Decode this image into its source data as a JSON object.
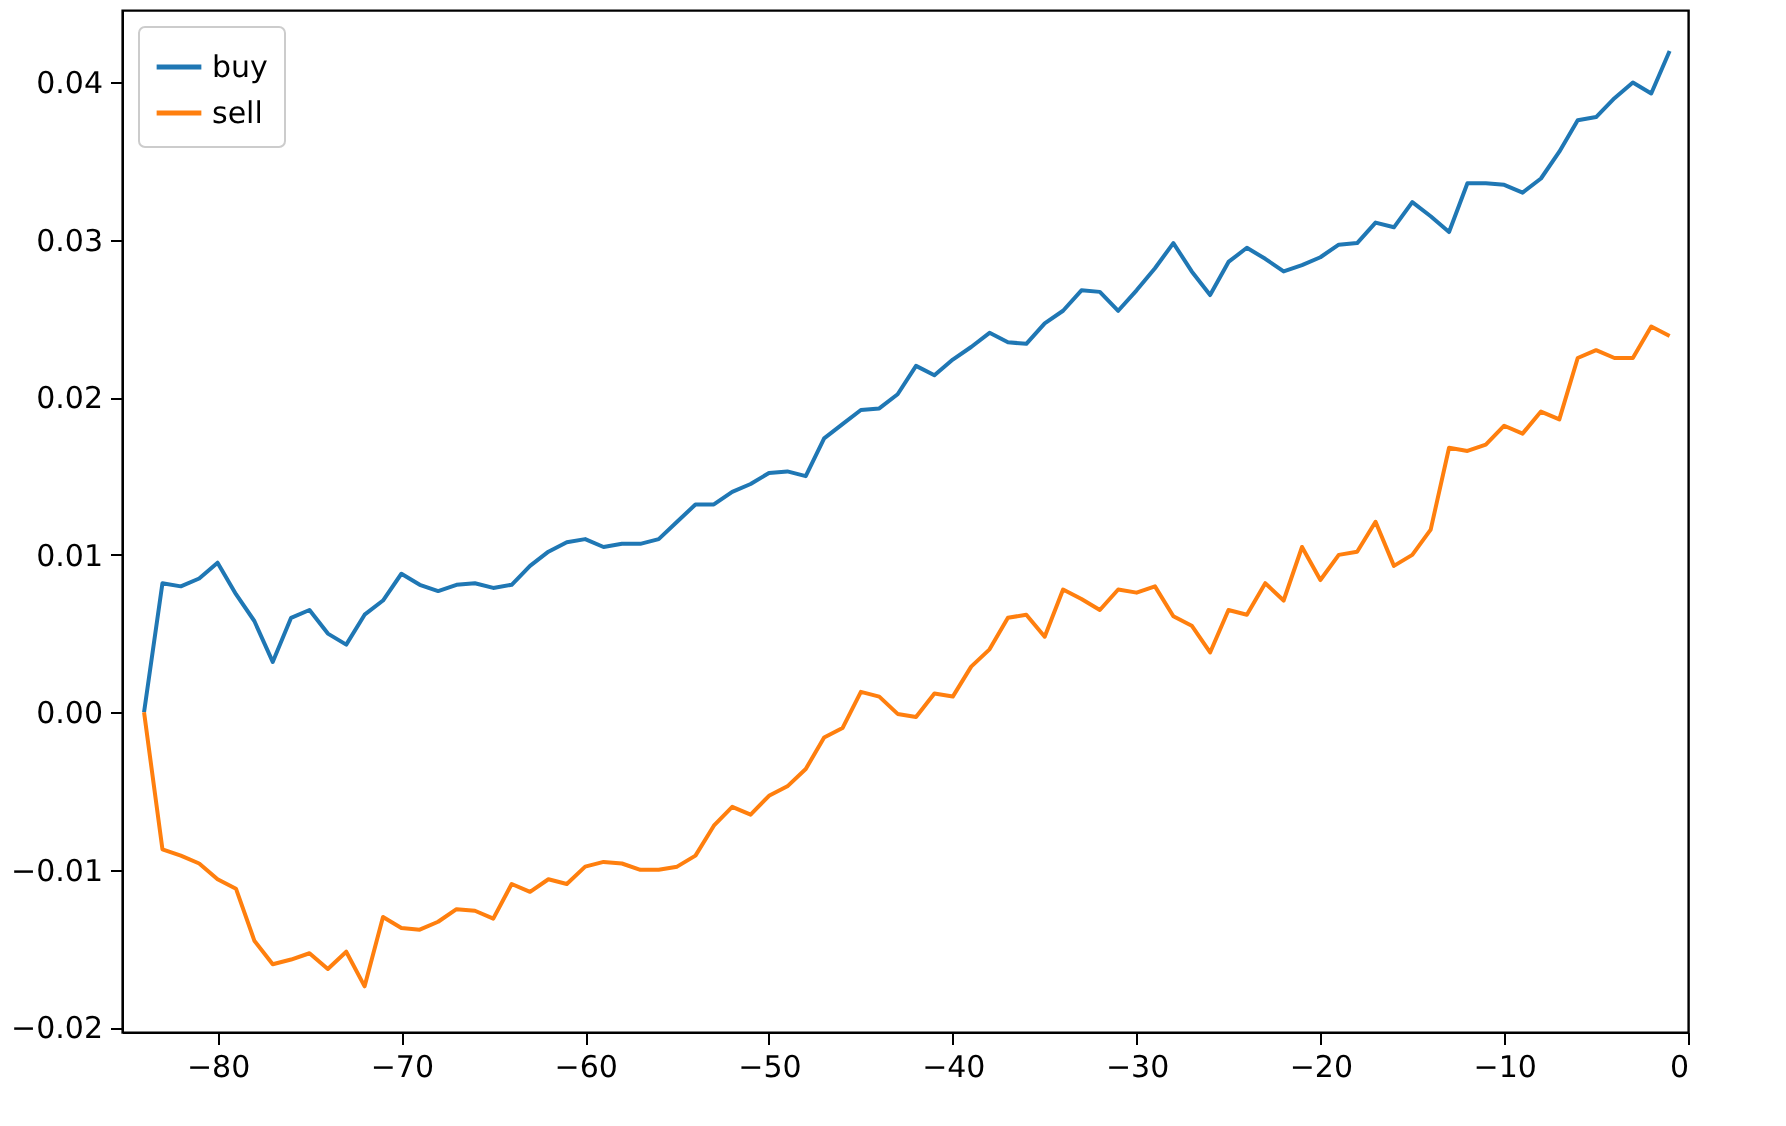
{
  "chart_data": {
    "type": "line",
    "x": [
      -84,
      -83,
      -82,
      -81,
      -80,
      -79,
      -78,
      -77,
      -76,
      -75,
      -74,
      -73,
      -72,
      -71,
      -70,
      -69,
      -68,
      -67,
      -66,
      -65,
      -64,
      -63,
      -62,
      -61,
      -60,
      -59,
      -58,
      -57,
      -56,
      -55,
      -54,
      -53,
      -52,
      -51,
      -50,
      -49,
      -48,
      -47,
      -46,
      -45,
      -44,
      -43,
      -42,
      -41,
      -40,
      -39,
      -38,
      -37,
      -36,
      -35,
      -34,
      -33,
      -32,
      -31,
      -30,
      -29,
      -28,
      -27,
      -26,
      -25,
      -24,
      -23,
      -22,
      -21,
      -20,
      -19,
      -18,
      -17,
      -16,
      -15,
      -14,
      -13,
      -12,
      -11,
      -10,
      -9,
      -8,
      -7,
      -6,
      -5,
      -4,
      -3,
      -2,
      -1
    ],
    "series": [
      {
        "name": "buy",
        "color": "#1f77b4",
        "values": [
          0.0,
          0.0082,
          0.008,
          0.0085,
          0.0095,
          0.0075,
          0.0058,
          0.0032,
          0.006,
          0.0065,
          0.005,
          0.0043,
          0.0062,
          0.0071,
          0.0088,
          0.0081,
          0.0077,
          0.0081,
          0.0082,
          0.0079,
          0.0081,
          0.0093,
          0.0102,
          0.0108,
          0.011,
          0.0105,
          0.0107,
          0.0107,
          0.011,
          0.0121,
          0.0132,
          0.0132,
          0.014,
          0.0145,
          0.0152,
          0.0153,
          0.015,
          0.0174,
          0.0183,
          0.0192,
          0.0193,
          0.0202,
          0.022,
          0.0214,
          0.0224,
          0.0232,
          0.0241,
          0.0235,
          0.0234,
          0.0247,
          0.0255,
          0.0268,
          0.0267,
          0.0255,
          0.0268,
          0.0282,
          0.0298,
          0.028,
          0.0265,
          0.0286,
          0.0295,
          0.0288,
          0.028,
          0.0284,
          0.0289,
          0.0297,
          0.0298,
          0.0311,
          0.0308,
          0.0324,
          0.0315,
          0.0305,
          0.0336,
          0.0336,
          0.0335,
          0.033,
          0.0339,
          0.0356,
          0.0376,
          0.0378,
          0.039,
          0.04,
          0.0393,
          0.042
        ]
      },
      {
        "name": "sell",
        "color": "#ff7f0e",
        "values": [
          0.0,
          -0.0087,
          -0.0091,
          -0.0096,
          -0.0106,
          -0.0112,
          -0.0145,
          -0.016,
          -0.0157,
          -0.0153,
          -0.0163,
          -0.0152,
          -0.0174,
          -0.013,
          -0.0137,
          -0.0138,
          -0.0133,
          -0.0125,
          -0.0126,
          -0.0131,
          -0.0109,
          -0.0114,
          -0.0106,
          -0.0109,
          -0.0098,
          -0.0095,
          -0.0096,
          -0.01,
          -0.01,
          -0.0098,
          -0.0091,
          -0.0072,
          -0.006,
          -0.0065,
          -0.0053,
          -0.0047,
          -0.0036,
          -0.0016,
          -0.001,
          0.0013,
          0.001,
          -0.0001,
          -0.0003,
          0.0012,
          0.001,
          0.0029,
          0.004,
          0.006,
          0.0062,
          0.0048,
          0.0078,
          0.0072,
          0.0065,
          0.0078,
          0.0076,
          0.008,
          0.0061,
          0.0055,
          0.0038,
          0.0065,
          0.0062,
          0.0082,
          0.0071,
          0.0105,
          0.0084,
          0.01,
          0.0102,
          0.0121,
          0.0093,
          0.01,
          0.0116,
          0.0168,
          0.0166,
          0.017,
          0.0182,
          0.0177,
          0.0191,
          0.0186,
          0.0225,
          0.023,
          0.0225,
          0.0225,
          0.0245,
          0.0239
        ]
      }
    ],
    "xlim": [
      -85.2,
      0
    ],
    "xticks": [
      {
        "value": -80,
        "label": "−80"
      },
      {
        "value": -70,
        "label": "−70"
      },
      {
        "value": -60,
        "label": "−60"
      },
      {
        "value": -50,
        "label": "−50"
      },
      {
        "value": -40,
        "label": "−40"
      },
      {
        "value": -30,
        "label": "−30"
      },
      {
        "value": -20,
        "label": "−20"
      },
      {
        "value": -10,
        "label": "−10"
      },
      0
    ],
    "ylim": [
      -0.0203,
      0.0446
    ],
    "yticks": [
      {
        "value": -0.02,
        "label": "−0.02"
      },
      {
        "value": -0.01,
        "label": "−0.01"
      },
      {
        "value": 0,
        "label": "0.00"
      },
      0.01,
      0.02,
      0.03,
      0.04
    ],
    "legend": "top left",
    "grid": false,
    "marker": "none",
    "line_style": "solid"
  }
}
